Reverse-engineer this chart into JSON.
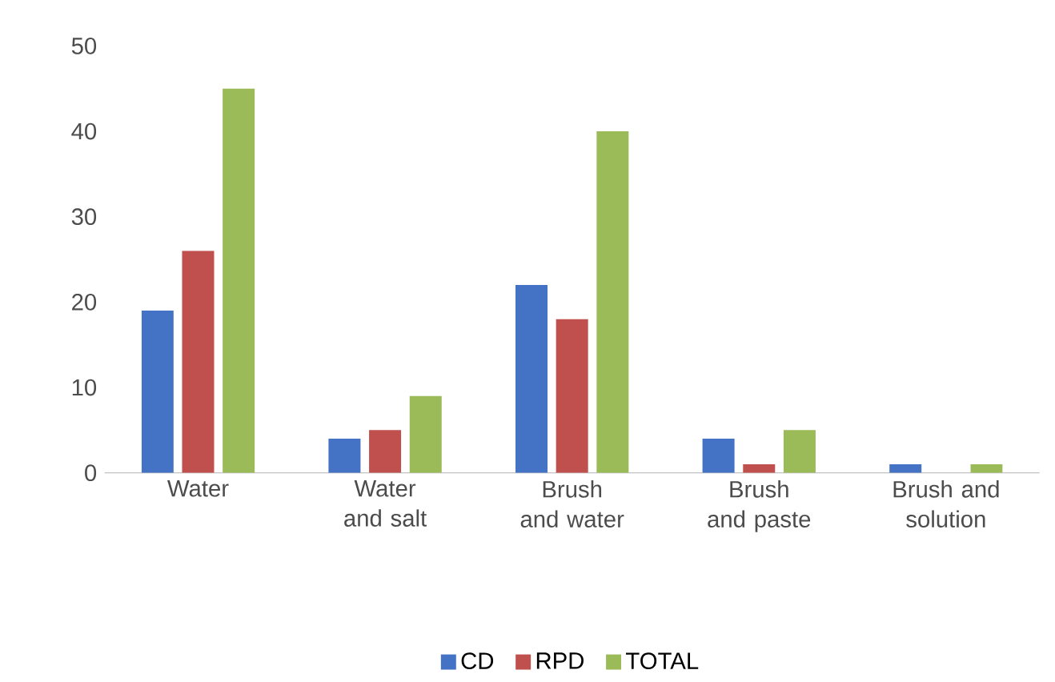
{
  "chart_data": {
    "type": "bar",
    "categories": [
      "Water",
      "Water and salt",
      "Brush and water",
      "Brush and paste",
      "Brush and solution"
    ],
    "series": [
      {
        "name": "CD",
        "color": "#4472c4",
        "values": [
          19,
          4,
          22,
          4,
          1
        ]
      },
      {
        "name": "RPD",
        "color": "#c0504d",
        "values": [
          26,
          5,
          18,
          1,
          0
        ]
      },
      {
        "name": "TOTAL",
        "color": "#9bbb59",
        "values": [
          45,
          9,
          40,
          5,
          1
        ]
      }
    ],
    "ylim": [
      0,
      50
    ],
    "yticks": [
      0,
      10,
      20,
      30,
      40,
      50
    ],
    "legend": "bottom"
  }
}
